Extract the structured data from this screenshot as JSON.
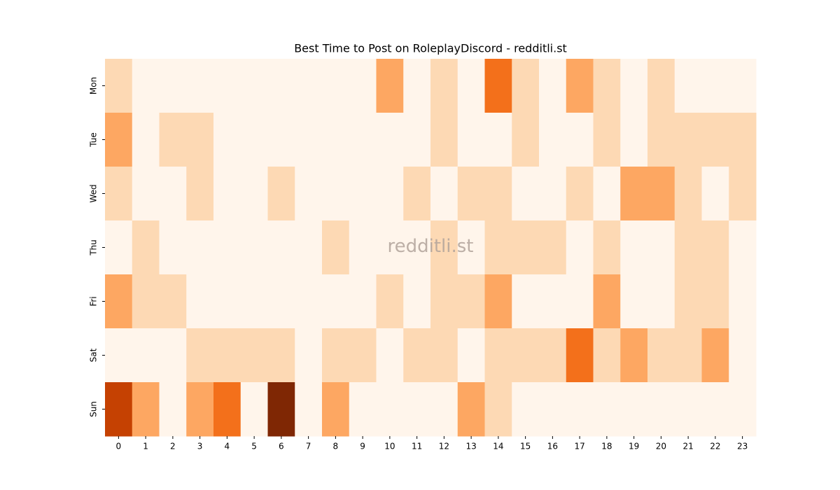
{
  "chart_data": {
    "type": "heatmap",
    "title": "Best Time to Post on RoleplayDiscord - redditli.st",
    "watermark": "redditli.st",
    "x": [
      0,
      1,
      2,
      3,
      4,
      5,
      6,
      7,
      8,
      9,
      10,
      11,
      12,
      13,
      14,
      15,
      16,
      17,
      18,
      19,
      20,
      21,
      22,
      23
    ],
    "categories": [
      "Mon",
      "Tue",
      "Wed",
      "Thu",
      "Fri",
      "Sat",
      "Sun"
    ],
    "vlim": [
      0,
      5
    ],
    "colormap": [
      "#fff5eb",
      "#fdd9b4",
      "#fda762",
      "#f3701b",
      "#c54102",
      "#7f2704"
    ],
    "values": [
      [
        1,
        0,
        0,
        0,
        0,
        0,
        0,
        0,
        0,
        0,
        2,
        0,
        1,
        0,
        3,
        1,
        0,
        2,
        1,
        0,
        1,
        0,
        0,
        0
      ],
      [
        2,
        0,
        1,
        1,
        0,
        0,
        0,
        0,
        0,
        0,
        0,
        0,
        1,
        0,
        0,
        1,
        0,
        0,
        1,
        0,
        1,
        1,
        1,
        1
      ],
      [
        1,
        0,
        0,
        1,
        0,
        0,
        1,
        0,
        0,
        0,
        0,
        1,
        0,
        1,
        1,
        0,
        0,
        1,
        0,
        2,
        2,
        1,
        0,
        1
      ],
      [
        0,
        1,
        0,
        0,
        0,
        0,
        0,
        0,
        1,
        0,
        0,
        0,
        1,
        0,
        1,
        1,
        1,
        0,
        1,
        0,
        0,
        1,
        1,
        0
      ],
      [
        2,
        1,
        1,
        0,
        0,
        0,
        0,
        0,
        0,
        0,
        1,
        0,
        1,
        1,
        2,
        0,
        0,
        0,
        2,
        0,
        0,
        1,
        1,
        0
      ],
      [
        0,
        0,
        0,
        1,
        1,
        1,
        1,
        0,
        1,
        1,
        0,
        1,
        1,
        0,
        1,
        1,
        1,
        3,
        1,
        2,
        1,
        1,
        2,
        0
      ],
      [
        4,
        2,
        0,
        2,
        3,
        0,
        5,
        0,
        2,
        0,
        0,
        0,
        0,
        2,
        1,
        0,
        0,
        0,
        0,
        0,
        0,
        0,
        0,
        0
      ]
    ]
  }
}
